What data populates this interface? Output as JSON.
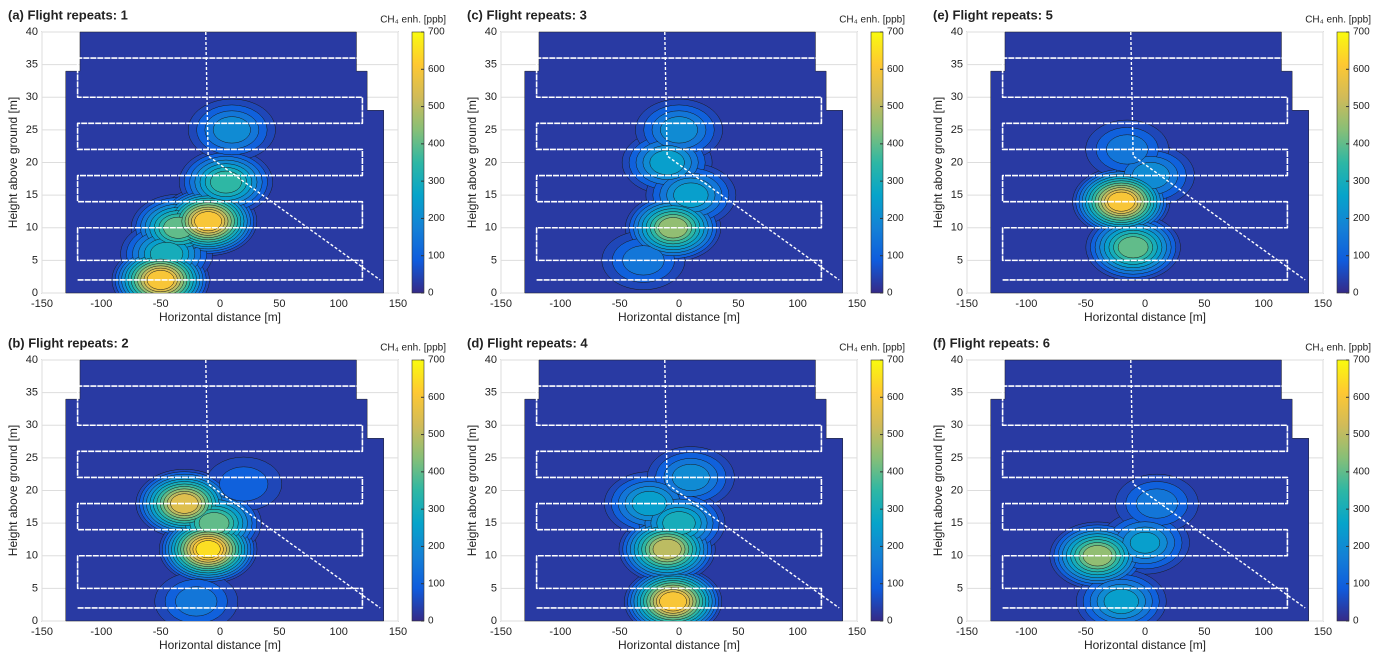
{
  "chart_data": [
    {
      "type": "contour",
      "title": "(a) Flight repeats: 1",
      "xlabel": "Horizontal distance [m]",
      "ylabel": "Height above ground [m]",
      "xlim": [
        -150,
        150
      ],
      "ylim": [
        0,
        40
      ],
      "xticks": [
        -150,
        -100,
        -50,
        0,
        50,
        100,
        150
      ],
      "yticks": [
        0,
        5,
        10,
        15,
        20,
        25,
        30,
        35,
        40
      ],
      "grid": true,
      "peaks": {
        "x": [
          -50,
          -35,
          -10,
          5,
          10,
          -45
        ],
        "y": [
          2,
          10,
          11,
          17,
          25,
          6
        ],
        "values": [
          650,
          450,
          650,
          400,
          250,
          350
        ]
      },
      "colorbar": {
        "label": "CH₄ enh. [ppb]",
        "lim": [
          0,
          700
        ],
        "ticks": [
          0,
          100,
          200,
          300,
          400,
          500,
          600,
          700
        ]
      }
    },
    {
      "type": "contour",
      "title": "(b) Flight repeats: 2",
      "xlabel": "Horizontal distance [m]",
      "ylabel": "Height above ground [m]",
      "xlim": [
        -150,
        150
      ],
      "ylim": [
        0,
        40
      ],
      "xticks": [
        -150,
        -100,
        -50,
        0,
        50,
        100,
        150
      ],
      "yticks": [
        0,
        5,
        10,
        15,
        20,
        25,
        30,
        35,
        40
      ],
      "grid": true,
      "peaks": {
        "x": [
          -30,
          -10,
          -5,
          -20,
          20
        ],
        "y": [
          18,
          11,
          15,
          3,
          21
        ],
        "values": [
          600,
          680,
          450,
          200,
          150
        ]
      },
      "colorbar": {
        "label": "CH₄ enh. [ppb]",
        "lim": [
          0,
          700
        ],
        "ticks": [
          0,
          100,
          200,
          300,
          400,
          500,
          600,
          700
        ]
      }
    },
    {
      "type": "contour",
      "title": "(c) Flight repeats: 3",
      "xlabel": "Horizontal distance [m]",
      "ylabel": "Height above ground [m]",
      "xlim": [
        -150,
        150
      ],
      "ylim": [
        0,
        40
      ],
      "xticks": [
        -150,
        -100,
        -50,
        0,
        50,
        100,
        150
      ],
      "yticks": [
        0,
        5,
        10,
        15,
        20,
        25,
        30,
        35,
        40
      ],
      "grid": true,
      "peaks": {
        "x": [
          -5,
          -10,
          0,
          -30,
          10
        ],
        "y": [
          10,
          20,
          25,
          5,
          15
        ],
        "values": [
          500,
          300,
          250,
          200,
          300
        ]
      },
      "colorbar": {
        "label": "CH₄ enh. [ppb]",
        "lim": [
          0,
          700
        ],
        "ticks": [
          0,
          100,
          200,
          300,
          400,
          500,
          600,
          700
        ]
      }
    },
    {
      "type": "contour",
      "title": "(d) Flight repeats: 4",
      "xlabel": "Horizontal distance [m]",
      "ylabel": "Height above ground [m]",
      "xlim": [
        -150,
        150
      ],
      "ylim": [
        0,
        40
      ],
      "xticks": [
        -150,
        -100,
        -50,
        0,
        50,
        100,
        150
      ],
      "yticks": [
        0,
        5,
        10,
        15,
        20,
        25,
        30,
        35,
        40
      ],
      "grid": true,
      "peaks": {
        "x": [
          -5,
          -10,
          -25,
          10,
          0
        ],
        "y": [
          3,
          11,
          18,
          22,
          15
        ],
        "values": [
          650,
          550,
          300,
          250,
          350
        ]
      },
      "colorbar": {
        "label": "CH₄ enh. [ppb]",
        "lim": [
          0,
          700
        ],
        "ticks": [
          0,
          100,
          200,
          300,
          400,
          500,
          600,
          700
        ]
      }
    },
    {
      "type": "contour",
      "title": "(e) Flight repeats: 5",
      "xlabel": "Horizontal distance [m]",
      "ylabel": "Height above ground [m]",
      "xlim": [
        -150,
        150
      ],
      "ylim": [
        0,
        40
      ],
      "xticks": [
        -150,
        -100,
        -50,
        0,
        50,
        100,
        150
      ],
      "yticks": [
        0,
        5,
        10,
        15,
        20,
        25,
        30,
        35,
        40
      ],
      "grid": true,
      "peaks": {
        "x": [
          -20,
          -10,
          5,
          -15
        ],
        "y": [
          14,
          7,
          18,
          22
        ],
        "values": [
          650,
          450,
          250,
          200
        ]
      },
      "colorbar": {
        "label": "CH₄ enh. [ppb]",
        "lim": [
          0,
          700
        ],
        "ticks": [
          0,
          100,
          200,
          300,
          400,
          500,
          600,
          700
        ]
      }
    },
    {
      "type": "contour",
      "title": "(f) Flight repeats: 6",
      "xlabel": "Horizontal distance [m]",
      "ylabel": "Height above ground [m]",
      "xlim": [
        -150,
        150
      ],
      "ylim": [
        0,
        40
      ],
      "xticks": [
        -150,
        -100,
        -50,
        0,
        50,
        100,
        150
      ],
      "yticks": [
        0,
        5,
        10,
        15,
        20,
        25,
        30,
        35,
        40
      ],
      "grid": true,
      "peaks": {
        "x": [
          -40,
          0,
          -20,
          10
        ],
        "y": [
          10,
          12,
          3,
          18
        ],
        "values": [
          500,
          280,
          300,
          200
        ]
      },
      "colorbar": {
        "label": "CH₄ enh. [ppb]",
        "lim": [
          0,
          700
        ],
        "ticks": [
          0,
          100,
          200,
          300,
          400,
          500,
          600,
          700
        ]
      }
    }
  ]
}
